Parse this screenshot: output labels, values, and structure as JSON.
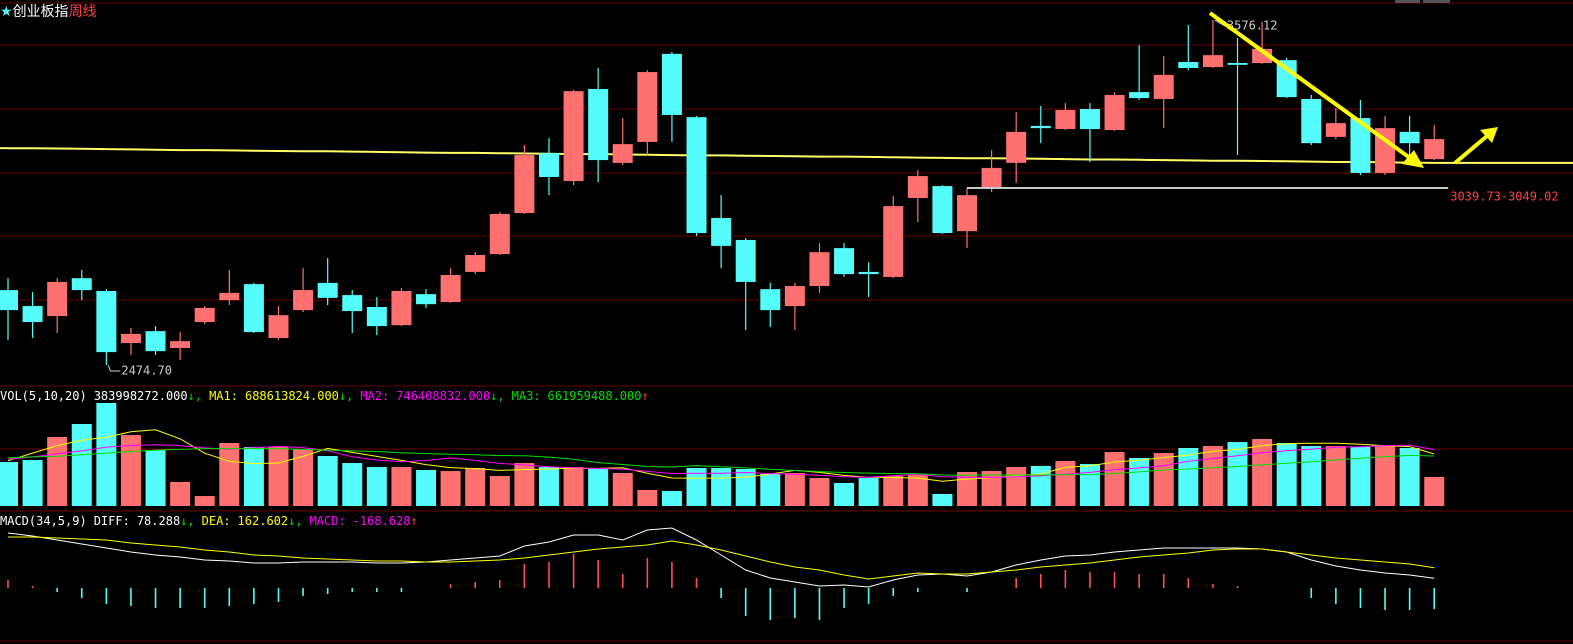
{
  "chart_data": [
    {
      "type": "candlestick",
      "badge": "★",
      "title": "创业板指",
      "subtitle": "周线",
      "up_color": "#ff7070",
      "down_color": "#54fcfc",
      "ylim": [
        2411,
        3640
      ],
      "open": [
        2714,
        2663,
        2631,
        2752,
        2711,
        2545,
        2583,
        2529,
        2612,
        2682,
        2733,
        2561,
        2650,
        2737,
        2698,
        2660,
        2602,
        2701,
        2676,
        2772,
        2829,
        2960,
        3151,
        3062,
        3356,
        3120,
        3187,
        3468,
        3266,
        2944,
        2874,
        2717,
        2663,
        2727,
        2848,
        2772,
        2756,
        3008,
        3046,
        2902,
        3037,
        3120,
        3238,
        3228,
        3292,
        3225,
        3346,
        3324,
        3442,
        3426,
        3439,
        3439,
        3448,
        3324,
        3203,
        3263,
        3088,
        3219,
        3132
      ],
      "high": [
        2752,
        2708,
        2752,
        2778,
        2717,
        2593,
        2599,
        2580,
        2663,
        2778,
        2737,
        2663,
        2784,
        2816,
        2714,
        2692,
        2721,
        2717,
        2784,
        2835,
        2963,
        3177,
        3199,
        3353,
        3423,
        3263,
        3416,
        3474,
        3270,
        3017,
        2880,
        2737,
        2737,
        2864,
        2864,
        2803,
        3014,
        3097,
        3049,
        3040,
        3161,
        3282,
        3302,
        3311,
        3311,
        3346,
        3496,
        3461,
        3560,
        3576.12,
        3519,
        3570,
        3455,
        3337,
        3295,
        3321,
        3270,
        3270,
        3241
      ],
      "low": [
        2555,
        2561,
        2577,
        2682,
        2474.7,
        2507,
        2507,
        2491,
        2606,
        2666,
        2577,
        2555,
        2644,
        2666,
        2577,
        2570,
        2599,
        2657,
        2673,
        2765,
        2826,
        2957,
        3017,
        3049,
        3059,
        3113,
        3145,
        3187,
        2886,
        2784,
        2586,
        2596,
        2586,
        2705,
        2756,
        2692,
        2752,
        2931,
        2893,
        2848,
        3027,
        3056,
        3183,
        3225,
        3123,
        3222,
        3321,
        3231,
        3416,
        3423,
        3145,
        3436,
        3327,
        3177,
        3196,
        3081,
        3081,
        3113,
        3129
      ],
      "close": [
        2650,
        2612,
        2740,
        2714,
        2516,
        2574,
        2519,
        2551,
        2657,
        2705,
        2580,
        2634,
        2714,
        2689,
        2647,
        2599,
        2711,
        2669,
        2762,
        2826,
        2957,
        3145,
        3075,
        3349,
        3129,
        3180,
        3410,
        3273,
        2896,
        2855,
        2740,
        2650,
        2727,
        2835,
        2765,
        2765,
        2982,
        3078,
        2896,
        3017,
        3104,
        3219,
        3231,
        3289,
        3228,
        3337,
        3327,
        3401,
        3423,
        3464,
        3433,
        3484,
        3330,
        3183,
        3247,
        3088,
        3231,
        3183,
        3196
      ],
      "overlay": {
        "color": "#ffff66",
        "values": [
          3167,
          3167,
          3166,
          3165,
          3164,
          3163,
          3162,
          3161,
          3161,
          3160,
          3159,
          3158,
          3157,
          3157,
          3156,
          3155,
          3154,
          3153,
          3152,
          3152,
          3151,
          3150,
          3149,
          3148,
          3148,
          3147,
          3146,
          3145,
          3144,
          3144,
          3143,
          3142,
          3141,
          3140,
          3140,
          3139,
          3138,
          3137,
          3136,
          3135,
          3135,
          3134,
          3133,
          3132,
          3131,
          3131,
          3130,
          3129,
          3128,
          3127,
          3127,
          3126,
          3125,
          3124,
          3123,
          3123,
          3122,
          3121,
          3120
        ]
      },
      "low_label": "2474.70",
      "high_label": "3576.12",
      "support": {
        "label": "3039.73-3049.02",
        "value": 3039.73,
        "start": 39,
        "color": "#c8c8c8",
        "label_color": "#ff4040"
      }
    },
    {
      "type": "volume",
      "title": "VOL(5,10,20)",
      "last_label": "383998272.000",
      "trend": "↓,",
      "ylim": [
        0,
        1470000000
      ],
      "values": [
        583000000,
        609000000,
        914000000,
        1086000000,
        1364000000,
        940000000,
        741000000,
        318000000,
        132000000,
        834000000,
        781000000,
        781000000,
        755000000,
        662000000,
        569000000,
        516000000,
        516000000,
        477000000,
        463000000,
        503000000,
        397000000,
        569000000,
        516000000,
        516000000,
        490000000,
        437000000,
        212000000,
        199000000,
        503000000,
        503000000,
        490000000,
        424000000,
        437000000,
        371000000,
        305000000,
        371000000,
        397000000,
        410000000,
        159000000,
        450000000,
        463000000,
        516000000,
        530000000,
        596000000,
        556000000,
        715000000,
        636000000,
        702000000,
        768000000,
        794000000,
        847000000,
        887000000,
        834000000,
        794000000,
        794000000,
        781000000,
        794000000,
        768000000,
        383998272
      ],
      "series": [
        {
          "name": "MA1:",
          "color": "#ffff00",
          "last_label": "688613824.000",
          "trend": "↓,",
          "values": [
            600000000,
            700000000,
            800000000,
            870000000,
            911000000,
            983000000,
            1009000000,
            890000000,
            699000000,
            593000000,
            561000000,
            569000000,
            657000000,
            763000000,
            710000000,
            657000000,
            604000000,
            548000000,
            508000000,
            495000000,
            471000000,
            482000000,
            490000000,
            500000000,
            498000000,
            506000000,
            434000000,
            371000000,
            368000000,
            371000000,
            381000000,
            424000000,
            471000000,
            445000000,
            405000000,
            382000000,
            376000000,
            371000000,
            328000000,
            357000000,
            376000000,
            400000000,
            424000000,
            511000000,
            532000000,
            583000000,
            607000000,
            641000000,
            675000000,
            723000000,
            749000000,
            800000000,
            826000000,
            831000000,
            831000000,
            818000000,
            799000000,
            786000000,
            688613824
          ]
        },
        {
          "name": "MA2:",
          "color": "#ff00ff",
          "last_label": "746408832.000",
          "trend": "↓,",
          "values": [
            620000000,
            650000000,
            690000000,
            730000000,
            780000000,
            800000000,
            810000000,
            800000000,
            770000000,
            752000000,
            772000000,
            789000000,
            774000000,
            731000000,
            652000000,
            609000000,
            587000000,
            603000000,
            636000000,
            603000000,
            564000000,
            543000000,
            519000000,
            504000000,
            497000000,
            489000000,
            458000000,
            431000000,
            434000000,
            435000000,
            444000000,
            429000000,
            421000000,
            407000000,
            388000000,
            382000000,
            400000000,
            421000000,
            387000000,
            381000000,
            379000000,
            388000000,
            398000000,
            420000000,
            445000000,
            480000000,
            504000000,
            533000000,
            593000000,
            628000000,
            666000000,
            704000000,
            734000000,
            753000000,
            777000000,
            784000000,
            800000000,
            806000000,
            746408832
          ]
        },
        {
          "name": "MA3:",
          "color": "#00e000",
          "last_label": "661959488.000",
          "trend": "↑",
          "values": [
            640000000,
            650000000,
            660000000,
            680000000,
            700000000,
            720000000,
            740000000,
            750000000,
            760000000,
            760000000,
            760000000,
            760000000,
            750000000,
            740000000,
            730000000,
            720000000,
            705000000,
            695000000,
            685000000,
            678000000,
            668000000,
            666000000,
            647000000,
            618000000,
            575000000,
            549000000,
            523000000,
            517000000,
            535000000,
            519000000,
            504000000,
            486000000,
            470000000,
            456000000,
            443000000,
            436000000,
            429000000,
            426000000,
            411000000,
            408000000,
            412000000,
            409000000,
            410000000,
            414000000,
            417000000,
            431000000,
            452000000,
            477000000,
            490000000,
            505000000,
            523000000,
            546000000,
            566000000,
            587000000,
            611000000,
            632000000,
            652000000,
            670000000,
            661959488
          ]
        }
      ]
    },
    {
      "type": "macd",
      "title": "MACD(34,5,9)",
      "ylim": [
        -416,
        584
      ],
      "up_color": "#ff5050",
      "down_color": "#54fcfc",
      "series": [
        {
          "name": "DIFF:",
          "color": "#ffffff",
          "last_label": "78.288",
          "trend": "↓,",
          "values": [
            440,
            416,
            384,
            352,
            320,
            288,
            264,
            248,
            224,
            216,
            200,
            200,
            208,
            208,
            208,
            200,
            200,
            208,
            224,
            240,
            256,
            336,
            368,
            424,
            424,
            384,
            464,
            480,
            384,
            264,
            144,
            80,
            48,
            16,
            24,
            8,
            64,
            104,
            112,
            96,
            128,
            184,
            224,
            256,
            264,
            288,
            304,
            320,
            320,
            320,
            320,
            312,
            288,
            224,
            176,
            144,
            120,
            104,
            78.288
          ]
        },
        {
          "name": "DEA:",
          "color": "#ffff00",
          "last_label": "162.602",
          "trend": "↓,",
          "values": [
            408,
            408,
            400,
            392,
            384,
            360,
            344,
            328,
            304,
            288,
            264,
            256,
            240,
            232,
            224,
            216,
            216,
            208,
            208,
            216,
            224,
            240,
            264,
            288,
            312,
            328,
            344,
            376,
            344,
            304,
            256,
            208,
            168,
            144,
            104,
            72,
            96,
            120,
            112,
            112,
            128,
            144,
            168,
            184,
            200,
            224,
            248,
            264,
            280,
            304,
            312,
            312,
            288,
            264,
            240,
            224,
            208,
            192,
            162.602
          ]
        },
        {
          "name": "MACD:",
          "color": "#ff00ff",
          "last_label": "-168.628",
          "trend": "↑",
          "histogram": true,
          "values": [
            64,
            16,
            -32,
            -80,
            -128,
            -144,
            -160,
            -160,
            -160,
            -144,
            -128,
            -112,
            -64,
            -48,
            -32,
            -32,
            -32,
            0,
            32,
            48,
            64,
            192,
            208,
            272,
            224,
            112,
            240,
            208,
            80,
            -80,
            -224,
            -256,
            -240,
            -256,
            -160,
            -128,
            -64,
            -32,
            0,
            -32,
            0,
            80,
            112,
            144,
            128,
            128,
            112,
            112,
            80,
            32,
            16,
            0,
            0,
            -80,
            -128,
            -160,
            -176,
            -176,
            -168.628
          ]
        }
      ]
    }
  ]
}
